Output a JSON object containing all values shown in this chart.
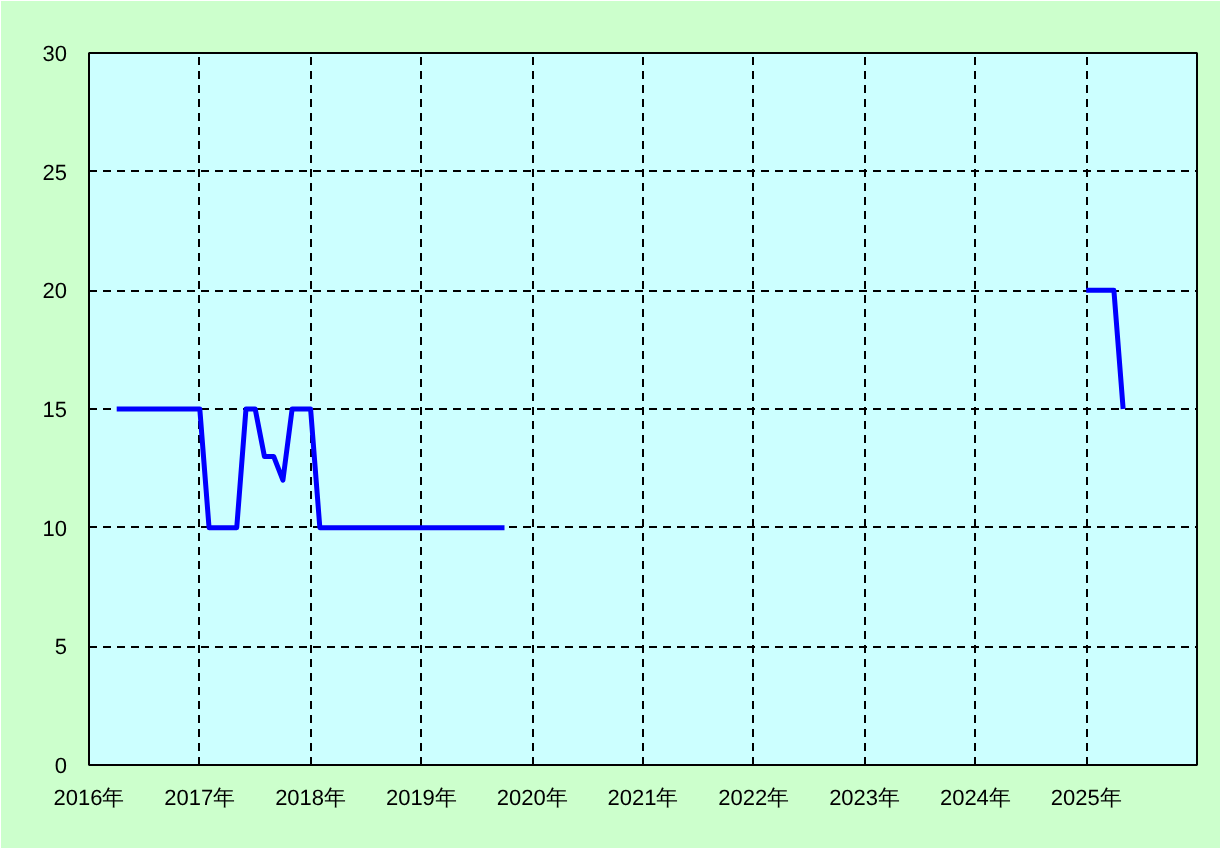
{
  "chart_data": {
    "type": "line",
    "x": [
      "2016-04",
      "2017-01",
      "2017-02",
      "2017-05",
      "2017-06",
      "2017-07",
      "2017-08",
      "2017-09",
      "2017-10",
      "2017-11",
      "2018-01",
      "2018-02",
      "2019-10",
      null,
      "2025-01",
      "2025-04",
      "2025-05"
    ],
    "series": [
      {
        "color": "#0000ff",
        "values": [
          15,
          15,
          10,
          10,
          15,
          15,
          13,
          13,
          12,
          15,
          15,
          10,
          10,
          null,
          20,
          20,
          15
        ]
      }
    ],
    "xlim": [
      "2016",
      "2026"
    ],
    "xticks": [
      {
        "value": "2016",
        "label": "2016年"
      },
      {
        "value": "2017",
        "label": "2017年"
      },
      {
        "value": "2018",
        "label": "2018年"
      },
      {
        "value": "2019",
        "label": "2019年"
      },
      {
        "value": "2020",
        "label": "2020年"
      },
      {
        "value": "2021",
        "label": "2021年"
      },
      {
        "value": "2022",
        "label": "2022年"
      },
      {
        "value": "2023",
        "label": "2023年"
      },
      {
        "value": "2024",
        "label": "2024年"
      },
      {
        "value": "2025",
        "label": "2025年"
      }
    ],
    "ylim": [
      0,
      30
    ],
    "yticks": [
      0,
      5,
      10,
      15,
      20,
      25,
      30
    ],
    "grid": true,
    "line_style": "solid",
    "marker": "none"
  }
}
